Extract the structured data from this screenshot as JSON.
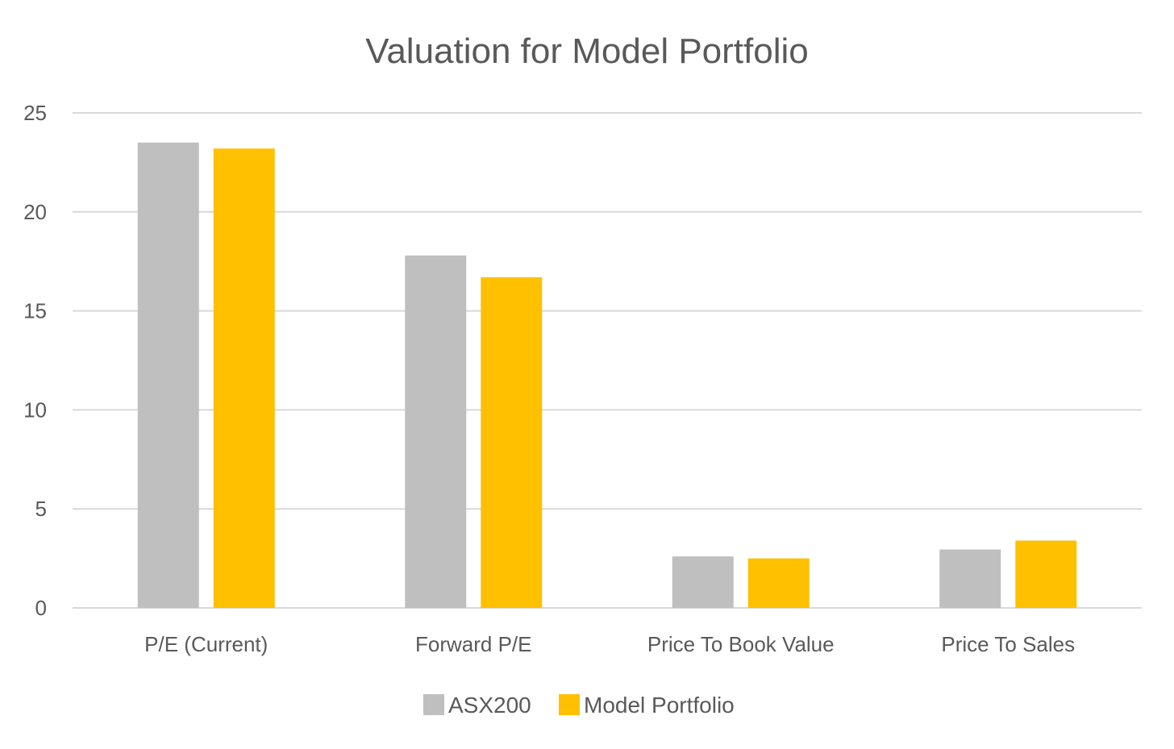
{
  "chart_data": {
    "type": "bar",
    "title": "Valuation for Model Portfolio",
    "categories": [
      "P/E (Current)",
      "Forward P/E",
      "Price To Book Value",
      "Price To Sales"
    ],
    "series": [
      {
        "name": "ASX200",
        "color": "#bfbfbf",
        "values": [
          23.5,
          17.8,
          2.6,
          2.95
        ]
      },
      {
        "name": "Model Portfolio",
        "color": "#ffc000",
        "values": [
          23.2,
          16.7,
          2.5,
          3.4
        ]
      }
    ],
    "ylim": [
      0,
      25
    ],
    "yticks": [
      0,
      5,
      10,
      15,
      20,
      25
    ],
    "grid": true,
    "legend_position": "bottom"
  }
}
